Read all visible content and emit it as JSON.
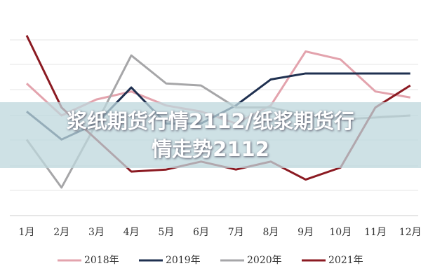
{
  "chart_data": {
    "type": "line",
    "title": "浆纸期货行情2112/纸浆期货行情走势2112",
    "categories": [
      "1月",
      "2月",
      "3月",
      "4月",
      "5月",
      "6月",
      "7月",
      "8月",
      "9月",
      "10月",
      "11月",
      "12月"
    ],
    "series": [
      {
        "name": "2018年",
        "color": "#e3a3ad",
        "values": [
          66,
          50,
          58,
          62,
          55,
          52,
          46,
          55,
          82,
          78,
          62,
          59
        ]
      },
      {
        "name": "2019年",
        "color": "#1f3050",
        "values": [
          52,
          38,
          46,
          64,
          46,
          46,
          55,
          68,
          71,
          71,
          71,
          71
        ]
      },
      {
        "name": "2020年",
        "color": "#a6a6a8",
        "values": [
          38,
          14,
          46,
          80,
          66,
          65,
          54,
          54,
          50,
          48,
          49,
          50
        ]
      },
      {
        "name": "2021年",
        "color": "#8b1a22",
        "values": [
          90,
          54,
          38,
          22,
          23,
          27,
          23,
          27,
          18,
          24,
          54,
          65
        ]
      }
    ],
    "ylim": [
      0,
      100
    ]
  }
}
